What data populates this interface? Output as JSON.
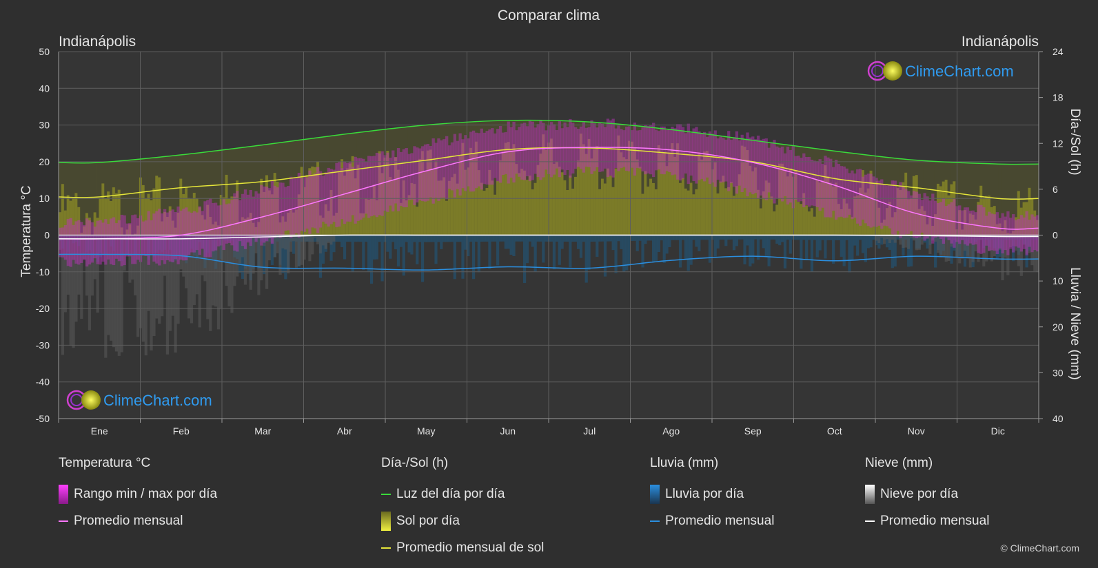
{
  "chart_data": {
    "type": "line",
    "title": "Comparar clima",
    "location_left": "Indianápolis",
    "location_right": "Indianápolis",
    "categories": [
      "Ene",
      "Feb",
      "Mar",
      "Abr",
      "May",
      "Jun",
      "Jul",
      "Ago",
      "Sep",
      "Oct",
      "Nov",
      "Dic"
    ],
    "y_left": {
      "label": "Temperatura °C",
      "range": [
        -50,
        50
      ],
      "ticks": [
        50,
        40,
        30,
        20,
        10,
        0,
        -10,
        -20,
        -30,
        -40,
        -50
      ]
    },
    "y_right_top": {
      "label": "Día-/Sol (h)",
      "range": [
        0,
        24
      ],
      "ticks": [
        24,
        18,
        12,
        6,
        0
      ]
    },
    "y_right_bottom": {
      "label": "Lluvia / Nieve (mm)",
      "range": [
        0,
        40
      ],
      "ticks": [
        10,
        20,
        30,
        40
      ]
    },
    "grid": true,
    "series": [
      {
        "name": "Luz del día por día",
        "unit": "h",
        "color": "#3adb3a",
        "values": [
          9.5,
          10.5,
          11.8,
          13.2,
          14.4,
          15.0,
          14.8,
          13.8,
          12.4,
          11.0,
          9.8,
          9.3
        ]
      },
      {
        "name": "Promedio mensual de sol",
        "unit": "h",
        "color": "#e6e63a",
        "values": [
          5.0,
          6.2,
          7.0,
          8.4,
          9.8,
          11.2,
          11.4,
          10.7,
          9.6,
          7.4,
          6.2,
          4.8
        ]
      },
      {
        "name": "Promedio mensual",
        "group": "Temperatura °C",
        "unit": "°C",
        "color": "#ff78ff",
        "values": [
          -1.0,
          0.0,
          5.0,
          11.2,
          17.5,
          22.7,
          23.9,
          23.2,
          19.8,
          13.6,
          5.9,
          1.9
        ]
      },
      {
        "name": "Promedio mensual",
        "group": "Lluvia (mm)",
        "unit": "mm",
        "color": "#2b8fe0",
        "values": [
          4.2,
          4.5,
          7.0,
          7.2,
          7.6,
          6.9,
          7.2,
          5.5,
          4.6,
          5.6,
          4.6,
          5.2
        ]
      },
      {
        "name": "Promedio mensual",
        "group": "Nieve (mm)",
        "unit": "mm",
        "color": "#ffffff",
        "values": [
          0.8,
          0.8,
          0.4,
          0.0,
          0.0,
          0.0,
          0.0,
          0.0,
          0.0,
          0.0,
          0.1,
          0.3
        ]
      }
    ],
    "daily_temp_range_monthly": {
      "min": [
        -6,
        -5,
        0,
        5,
        11,
        17,
        19,
        18,
        13,
        7,
        1,
        -3
      ],
      "max": [
        2,
        5,
        11,
        18,
        23,
        28,
        29,
        28,
        25,
        18,
        10,
        4
      ]
    }
  },
  "watermark": {
    "text": "ClimeChart.com"
  },
  "legend": {
    "temp": {
      "heading": "Temperatura °C",
      "item1": "Rango min / max por día",
      "item2": "Promedio mensual"
    },
    "sun": {
      "heading": "Día-/Sol (h)",
      "item1": "Luz del día por día",
      "item2": "Sol por día",
      "item3": "Promedio mensual de sol"
    },
    "rain": {
      "heading": "Lluvia (mm)",
      "item1": "Lluvia por día",
      "item2": "Promedio mensual"
    },
    "snow": {
      "heading": "Nieve (mm)",
      "item1": "Nieve por día",
      "item2": "Promedio mensual"
    }
  },
  "copyright": "© ClimeChart.com",
  "colors": {
    "background": "#2f2f2f",
    "temp_range": "#e020e0",
    "sunshine": "#b4b428",
    "rain": "#2b8fe0",
    "snow": "#cccccc",
    "brand": "#2f9bf0"
  }
}
